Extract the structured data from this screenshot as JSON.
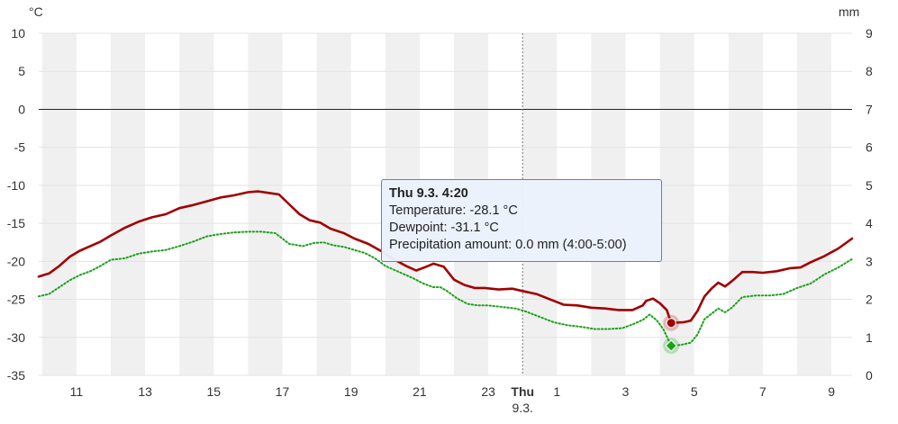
{
  "chart_data": {
    "type": "line",
    "y_left_unit": "°C",
    "y_right_unit": "mm",
    "ylim_left": [
      -35,
      10
    ],
    "ylim_right": [
      0,
      9
    ],
    "y_left_ticks": [
      "10",
      "5",
      "0",
      "-5",
      "-10",
      "-15",
      "-20",
      "-25",
      "-30",
      "-35"
    ],
    "y_right_ticks": [
      "9",
      "8",
      "7",
      "6",
      "5",
      "4",
      "3",
      "2",
      "1",
      "0"
    ],
    "x_hour_range": [
      9.9,
      33.6
    ],
    "x_ticks": [
      {
        "h": 11,
        "label": "11"
      },
      {
        "h": 13,
        "label": "13"
      },
      {
        "h": 15,
        "label": "15"
      },
      {
        "h": 17,
        "label": "17"
      },
      {
        "h": 19,
        "label": "19"
      },
      {
        "h": 21,
        "label": "21"
      },
      {
        "h": 23,
        "label": "23"
      },
      {
        "h": 24,
        "label": "Thu",
        "sub": "9.3.",
        "bold": true
      },
      {
        "h": 25,
        "label": "1"
      },
      {
        "h": 27,
        "label": "3"
      },
      {
        "h": 29,
        "label": "5"
      },
      {
        "h": 31,
        "label": "7"
      },
      {
        "h": 33,
        "label": "9"
      }
    ],
    "series": [
      {
        "name": "Temperature",
        "color": "#a00000",
        "style": "solid",
        "points": [
          [
            9.9,
            -22.0
          ],
          [
            10.2,
            -21.6
          ],
          [
            10.5,
            -20.6
          ],
          [
            10.8,
            -19.4
          ],
          [
            11.1,
            -18.6
          ],
          [
            11.4,
            -18.0
          ],
          [
            11.7,
            -17.4
          ],
          [
            12.0,
            -16.6
          ],
          [
            12.4,
            -15.6
          ],
          [
            12.8,
            -14.8
          ],
          [
            13.2,
            -14.2
          ],
          [
            13.6,
            -13.8
          ],
          [
            14.0,
            -13.0
          ],
          [
            14.4,
            -12.6
          ],
          [
            14.8,
            -12.1
          ],
          [
            15.2,
            -11.6
          ],
          [
            15.6,
            -11.3
          ],
          [
            16.0,
            -10.9
          ],
          [
            16.3,
            -10.8
          ],
          [
            16.6,
            -11.0
          ],
          [
            16.9,
            -11.2
          ],
          [
            17.2,
            -12.5
          ],
          [
            17.5,
            -13.8
          ],
          [
            17.8,
            -14.6
          ],
          [
            18.1,
            -14.9
          ],
          [
            18.4,
            -15.7
          ],
          [
            18.8,
            -16.3
          ],
          [
            19.1,
            -17.0
          ],
          [
            19.5,
            -17.7
          ],
          [
            19.9,
            -18.7
          ],
          [
            20.2,
            -19.6
          ],
          [
            20.6,
            -20.6
          ],
          [
            20.9,
            -21.2
          ],
          [
            21.2,
            -20.7
          ],
          [
            21.4,
            -20.3
          ],
          [
            21.7,
            -20.7
          ],
          [
            22.0,
            -22.4
          ],
          [
            22.3,
            -23.1
          ],
          [
            22.6,
            -23.5
          ],
          [
            22.9,
            -23.5
          ],
          [
            23.3,
            -23.7
          ],
          [
            23.7,
            -23.6
          ],
          [
            24.0,
            -23.9
          ],
          [
            24.4,
            -24.3
          ],
          [
            24.8,
            -25.0
          ],
          [
            25.2,
            -25.7
          ],
          [
            25.6,
            -25.8
          ],
          [
            26.0,
            -26.1
          ],
          [
            26.4,
            -26.2
          ],
          [
            26.8,
            -26.4
          ],
          [
            27.2,
            -26.4
          ],
          [
            27.5,
            -25.8
          ],
          [
            27.6,
            -25.2
          ],
          [
            27.8,
            -24.9
          ],
          [
            28.0,
            -25.5
          ],
          [
            28.2,
            -26.4
          ],
          [
            28.33,
            -28.1
          ],
          [
            28.7,
            -28.0
          ],
          [
            28.9,
            -27.8
          ],
          [
            29.1,
            -26.5
          ],
          [
            29.3,
            -24.6
          ],
          [
            29.5,
            -23.6
          ],
          [
            29.7,
            -22.8
          ],
          [
            29.9,
            -23.3
          ],
          [
            30.1,
            -22.6
          ],
          [
            30.4,
            -21.4
          ],
          [
            30.7,
            -21.4
          ],
          [
            31.0,
            -21.5
          ],
          [
            31.4,
            -21.3
          ],
          [
            31.8,
            -20.9
          ],
          [
            32.1,
            -20.8
          ],
          [
            32.4,
            -20.1
          ],
          [
            32.8,
            -19.3
          ],
          [
            33.2,
            -18.3
          ],
          [
            33.6,
            -17.0
          ]
        ]
      },
      {
        "name": "Dewpoint",
        "color": "#1aa11a",
        "style": "dotted",
        "points": [
          [
            9.9,
            -24.6
          ],
          [
            10.2,
            -24.3
          ],
          [
            10.5,
            -23.4
          ],
          [
            10.8,
            -22.5
          ],
          [
            11.1,
            -21.8
          ],
          [
            11.4,
            -21.3
          ],
          [
            11.7,
            -20.6
          ],
          [
            12.0,
            -19.8
          ],
          [
            12.4,
            -19.6
          ],
          [
            12.8,
            -19.0
          ],
          [
            13.2,
            -18.7
          ],
          [
            13.6,
            -18.5
          ],
          [
            14.0,
            -18.0
          ],
          [
            14.4,
            -17.4
          ],
          [
            14.8,
            -16.7
          ],
          [
            15.2,
            -16.4
          ],
          [
            15.6,
            -16.2
          ],
          [
            16.0,
            -16.1
          ],
          [
            16.4,
            -16.1
          ],
          [
            16.8,
            -16.3
          ],
          [
            17.2,
            -17.7
          ],
          [
            17.6,
            -18.0
          ],
          [
            17.9,
            -17.6
          ],
          [
            18.2,
            -17.5
          ],
          [
            18.5,
            -17.9
          ],
          [
            18.8,
            -18.1
          ],
          [
            19.1,
            -18.5
          ],
          [
            19.4,
            -18.9
          ],
          [
            19.7,
            -19.6
          ],
          [
            20.0,
            -20.6
          ],
          [
            20.4,
            -21.4
          ],
          [
            20.8,
            -22.2
          ],
          [
            21.1,
            -22.9
          ],
          [
            21.4,
            -23.4
          ],
          [
            21.6,
            -23.4
          ],
          [
            21.8,
            -23.9
          ],
          [
            22.1,
            -24.9
          ],
          [
            22.4,
            -25.6
          ],
          [
            22.7,
            -25.8
          ],
          [
            23.0,
            -25.8
          ],
          [
            23.4,
            -26.0
          ],
          [
            23.8,
            -26.2
          ],
          [
            24.1,
            -26.6
          ],
          [
            24.5,
            -27.3
          ],
          [
            24.9,
            -28.0
          ],
          [
            25.3,
            -28.4
          ],
          [
            25.7,
            -28.6
          ],
          [
            26.1,
            -28.9
          ],
          [
            26.5,
            -28.9
          ],
          [
            26.9,
            -28.8
          ],
          [
            27.2,
            -28.3
          ],
          [
            27.5,
            -27.7
          ],
          [
            27.7,
            -27.0
          ],
          [
            27.9,
            -27.7
          ],
          [
            28.1,
            -28.9
          ],
          [
            28.33,
            -31.1
          ],
          [
            28.6,
            -31.0
          ],
          [
            28.9,
            -30.7
          ],
          [
            29.1,
            -29.6
          ],
          [
            29.3,
            -27.6
          ],
          [
            29.5,
            -26.9
          ],
          [
            29.7,
            -26.2
          ],
          [
            29.9,
            -26.7
          ],
          [
            30.1,
            -26.1
          ],
          [
            30.4,
            -24.7
          ],
          [
            30.8,
            -24.5
          ],
          [
            31.2,
            -24.5
          ],
          [
            31.6,
            -24.3
          ],
          [
            32.0,
            -23.5
          ],
          [
            32.4,
            -22.9
          ],
          [
            32.8,
            -21.7
          ],
          [
            33.2,
            -20.8
          ],
          [
            33.6,
            -19.7
          ]
        ]
      }
    ],
    "highlight": {
      "h": 28.33,
      "temperature": -28.1,
      "dewpoint": -31.1
    }
  },
  "tooltip": {
    "title": "Thu 9.3. 4:20",
    "temperature": "Temperature: -28.1 °C",
    "dewpoint": "Dewpoint: -31.1 °C",
    "precipitation": "Precipitation amount: 0.0 mm (4:00-5:00)"
  }
}
